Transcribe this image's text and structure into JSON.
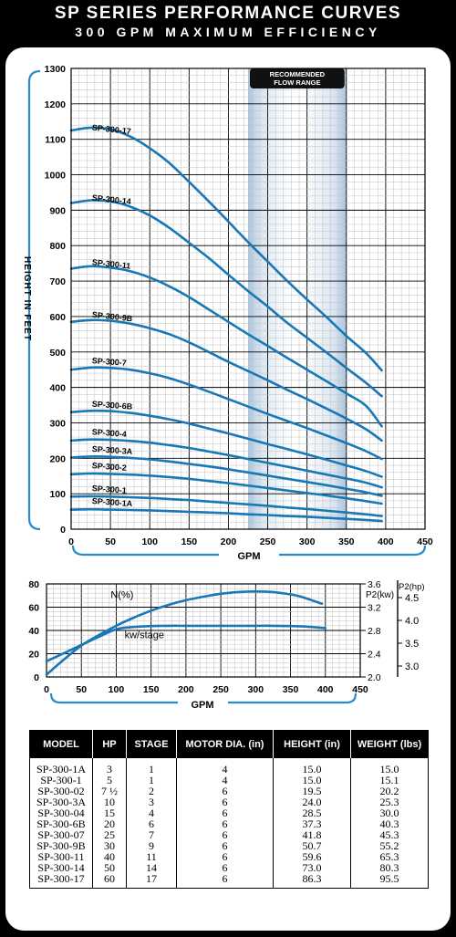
{
  "header": {
    "title": "SP SERIES PERFORMANCE CURVES",
    "subtitle": "300 GPM MAXIMUM EFFICIENCY"
  },
  "chart_data": [
    {
      "type": "line",
      "ylabel": "HEIGHT IN FEET",
      "xlabel": "GPM",
      "xlim": [
        0,
        450
      ],
      "ylim": [
        0,
        1300
      ],
      "x_ticks": [
        0,
        50,
        100,
        150,
        200,
        250,
        300,
        350,
        400,
        450
      ],
      "y_ticks": [
        0,
        100,
        200,
        300,
        400,
        500,
        600,
        700,
        800,
        900,
        1000,
        1100,
        1200,
        1300
      ],
      "grid": true,
      "band": {
        "label": "RECOMMENDED FLOW RANGE",
        "x": [
          225,
          350
        ]
      },
      "series": [
        {
          "name": "SP-300-17",
          "x": [
            0,
            25,
            50,
            75,
            100,
            125,
            150,
            175,
            200,
            225,
            250,
            275,
            300,
            325,
            350,
            375,
            395
          ],
          "y": [
            1125,
            1133,
            1128,
            1108,
            1075,
            1033,
            980,
            925,
            868,
            810,
            755,
            700,
            648,
            598,
            545,
            497,
            448
          ]
        },
        {
          "name": "SP-300-14",
          "x": [
            0,
            25,
            50,
            75,
            100,
            125,
            150,
            175,
            200,
            225,
            250,
            275,
            300,
            325,
            350,
            375,
            395
          ],
          "y": [
            920,
            928,
            925,
            910,
            885,
            850,
            808,
            765,
            718,
            672,
            628,
            582,
            540,
            498,
            455,
            413,
            375
          ]
        },
        {
          "name": "SP-300-11",
          "x": [
            0,
            25,
            50,
            75,
            100,
            125,
            150,
            175,
            200,
            225,
            250,
            275,
            300,
            325,
            350,
            375,
            395
          ],
          "y": [
            735,
            742,
            738,
            728,
            710,
            685,
            655,
            620,
            585,
            550,
            517,
            483,
            450,
            417,
            383,
            348,
            290
          ]
        },
        {
          "name": "SP-300-9B",
          "x": [
            0,
            25,
            50,
            75,
            100,
            125,
            150,
            175,
            200,
            225,
            250,
            275,
            300,
            325,
            350,
            375,
            395
          ],
          "y": [
            585,
            590,
            588,
            580,
            567,
            550,
            527,
            500,
            472,
            446,
            420,
            393,
            367,
            340,
            312,
            282,
            250
          ]
        },
        {
          "name": "SP-300-7",
          "x": [
            0,
            25,
            50,
            75,
            100,
            125,
            150,
            175,
            200,
            225,
            250,
            275,
            300,
            325,
            350,
            375,
            395
          ],
          "y": [
            450,
            456,
            455,
            450,
            440,
            426,
            408,
            388,
            367,
            346,
            325,
            305,
            285,
            264,
            243,
            220,
            198
          ]
        },
        {
          "name": "SP-300-6B",
          "x": [
            0,
            25,
            50,
            75,
            100,
            125,
            150,
            175,
            200,
            225,
            250,
            275,
            300,
            325,
            350,
            375,
            395
          ],
          "y": [
            330,
            334,
            333,
            328,
            320,
            310,
            298,
            284,
            270,
            255,
            240,
            226,
            211,
            196,
            180,
            164,
            148
          ]
        },
        {
          "name": "SP-300-4",
          "x": [
            0,
            25,
            50,
            75,
            100,
            125,
            150,
            175,
            200,
            225,
            250,
            275,
            300,
            325,
            350,
            375,
            395
          ],
          "y": [
            250,
            253,
            252,
            249,
            244,
            237,
            229,
            219,
            209,
            198,
            187,
            176,
            165,
            154,
            143,
            131,
            118
          ]
        },
        {
          "name": "SP-300-3A",
          "x": [
            0,
            25,
            50,
            75,
            100,
            125,
            150,
            175,
            200,
            225,
            250,
            275,
            300,
            325,
            350,
            375,
            395
          ],
          "y": [
            202,
            205,
            204,
            201,
            197,
            191,
            184,
            177,
            169,
            160,
            151,
            142,
            133,
            124,
            114,
            104,
            94
          ]
        },
        {
          "name": "SP-300-2",
          "x": [
            0,
            25,
            50,
            75,
            100,
            125,
            150,
            175,
            200,
            225,
            250,
            275,
            300,
            325,
            350,
            375,
            395
          ],
          "y": [
            155,
            157,
            156,
            154,
            151,
            147,
            142,
            136,
            130,
            123,
            116,
            109,
            102,
            95,
            87,
            79,
            72
          ]
        },
        {
          "name": "SP-300-1",
          "x": [
            0,
            25,
            50,
            75,
            100,
            125,
            150,
            175,
            200,
            225,
            250,
            275,
            300,
            325,
            350,
            375,
            395
          ],
          "y": [
            92,
            93,
            92,
            90,
            88,
            85,
            82,
            78,
            74,
            70,
            66,
            61,
            57,
            52,
            47,
            42,
            37
          ]
        },
        {
          "name": "SP-300-1A",
          "x": [
            0,
            25,
            50,
            75,
            100,
            125,
            150,
            175,
            200,
            225,
            250,
            275,
            300,
            325,
            350,
            375,
            395
          ],
          "y": [
            55,
            56,
            55,
            54,
            53,
            51,
            49,
            47,
            45,
            42,
            40,
            37,
            35,
            32,
            29,
            26,
            23
          ]
        }
      ]
    },
    {
      "type": "line",
      "xlabel": "GPM",
      "xlim": [
        0,
        450
      ],
      "ylim": [
        0,
        80
      ],
      "x_ticks": [
        0,
        50,
        100,
        150,
        200,
        250,
        300,
        350,
        400,
        450
      ],
      "y_ticks": [
        0,
        20,
        40,
        60,
        80
      ],
      "grid": true,
      "right_axes": [
        {
          "label": "P2(kw)",
          "ticks": [
            "2.0",
            "2.4",
            "2.8",
            "3.2",
            "3.6"
          ]
        },
        {
          "label": "P2(hp)",
          "ticks": [
            "3.0",
            "3.5",
            "4.0",
            "4.5"
          ]
        }
      ],
      "series": [
        {
          "name": "N(%)",
          "x": [
            0,
            25,
            50,
            75,
            100,
            125,
            150,
            175,
            200,
            225,
            250,
            275,
            300,
            325,
            350,
            365,
            395
          ],
          "y": [
            2,
            15,
            27,
            36,
            44,
            51,
            57,
            62,
            66,
            69,
            71.5,
            73,
            73.5,
            73,
            71,
            69,
            63
          ]
        },
        {
          "name": "kw/stage",
          "x": [
            0,
            25,
            50,
            75,
            100,
            125,
            150,
            175,
            200,
            225,
            250,
            275,
            300,
            325,
            350,
            375,
            400
          ],
          "y": [
            2.27,
            2.41,
            2.55,
            2.69,
            2.82,
            2.86,
            2.875,
            2.88,
            2.88,
            2.88,
            2.88,
            2.88,
            2.88,
            2.88,
            2.875,
            2.865,
            2.84
          ]
        }
      ]
    }
  ],
  "table": {
    "headers": [
      "MODEL",
      "HP",
      "STAGE",
      "MOTOR DIA. (in)",
      "HEIGHT (in)",
      "WEIGHT (lbs)"
    ],
    "rows": [
      [
        "SP-300-1A",
        "3",
        "1",
        "4",
        "15.0",
        "15.0"
      ],
      [
        "SP-300-1",
        "5",
        "1",
        "4",
        "15.0",
        "15.1"
      ],
      [
        "SP-300-02",
        "7 ½",
        "2",
        "6",
        "19.5",
        "20.2"
      ],
      [
        "SP-300-3A",
        "10",
        "3",
        "6",
        "24.0",
        "25.3"
      ],
      [
        "SP-300-04",
        "15",
        "4",
        "6",
        "28.5",
        "30.0"
      ],
      [
        "SP-300-6B",
        "20",
        "6",
        "6",
        "37.3",
        "40.3"
      ],
      [
        "SP-300-07",
        "25",
        "7",
        "6",
        "41.8",
        "45.3"
      ],
      [
        "SP-300-9B",
        "30",
        "9",
        "6",
        "50.7",
        "55.2"
      ],
      [
        "SP-300-11",
        "40",
        "11",
        "6",
        "59.6",
        "65.3"
      ],
      [
        "SP-300-14",
        "50",
        "14",
        "6",
        "73.0",
        "80.3"
      ],
      [
        "SP-300-17",
        "60",
        "17",
        "6",
        "86.3",
        "95.5"
      ]
    ]
  },
  "colors": {
    "curve": "#1878b6",
    "band": "#c5d5e6",
    "grid_minor": "#bfbfbf",
    "grid_major": "#000000",
    "bracket": "#2a8bc9"
  }
}
